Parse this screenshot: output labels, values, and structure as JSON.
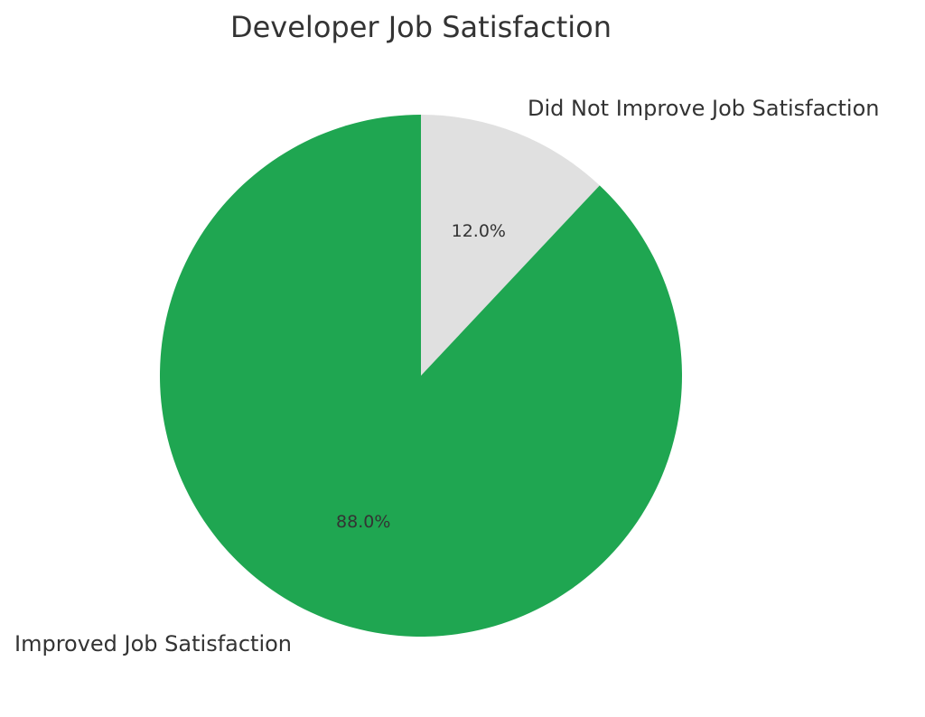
{
  "chart_data": {
    "type": "pie",
    "title": "Developer Job Satisfaction",
    "slices": [
      {
        "label": "Did Not Improve Job Satisfaction",
        "value": 12.0,
        "display": "12.0%",
        "color": "#e0e0e0"
      },
      {
        "label": "Improved Job Satisfaction",
        "value": 88.0,
        "display": "88.0%",
        "color": "#1fa651"
      }
    ],
    "start": "top, clockwise"
  }
}
